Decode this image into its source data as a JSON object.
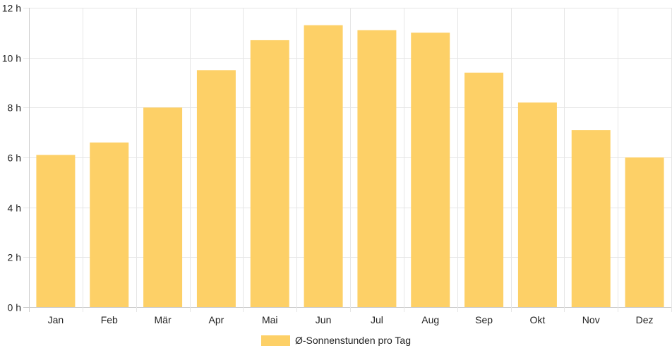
{
  "chart_data": {
    "type": "bar",
    "categories": [
      "Jan",
      "Feb",
      "Mär",
      "Apr",
      "Mai",
      "Jun",
      "Jul",
      "Aug",
      "Sep",
      "Okt",
      "Nov",
      "Dez"
    ],
    "series": [
      {
        "name": "Ø-Sonnenstunden pro Tag",
        "values": [
          6.1,
          6.6,
          8.0,
          9.5,
          10.7,
          11.3,
          11.1,
          11.0,
          9.4,
          8.2,
          7.1,
          6.0
        ]
      }
    ],
    "title": "",
    "xlabel": "",
    "ylabel": "",
    "ylim": [
      0,
      12
    ],
    "y_ticks": [
      0,
      2,
      4,
      6,
      8,
      10,
      12
    ],
    "y_tick_suffix": " h",
    "grid": true,
    "legend_position": "bottom",
    "colors": {
      "bar": "#fdd067",
      "grid": "#e6e6e6",
      "axis": "#cccccc"
    }
  }
}
